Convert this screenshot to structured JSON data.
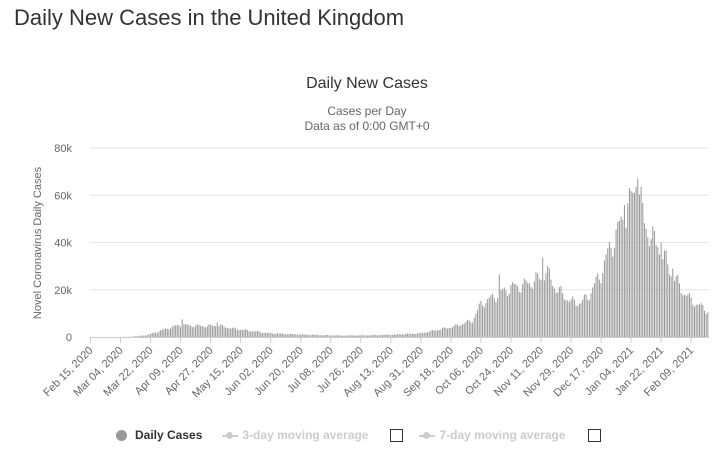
{
  "page": {
    "heading": "Daily New Cases in the United Kingdom"
  },
  "legend": {
    "items": [
      {
        "label": "Daily Cases",
        "active": true
      },
      {
        "label": "3-day moving average",
        "active": false
      },
      {
        "label": "7-day moving average",
        "active": false
      }
    ]
  },
  "colors": {
    "bar": "#999999",
    "grid": "#e6e6e6",
    "text": "#333333",
    "axis_text": "#666666",
    "inactive": "#cccccc"
  },
  "chart_data": {
    "type": "bar",
    "title": "Daily New Cases",
    "subtitle_lines": [
      "Cases per Day",
      "Data as of 0:00 GMT+0"
    ],
    "ylabel": "Novel Coronavirus Daily Cases",
    "xlabel": "",
    "ylim": [
      0,
      80000
    ],
    "yticks": [
      0,
      20000,
      40000,
      60000,
      80000
    ],
    "ytick_labels": [
      "0",
      "20k",
      "40k",
      "60k",
      "80k"
    ],
    "x_start": "2020-02-15",
    "x_end": "2021-02-19",
    "xtick_labels": [
      "Feb 15, 2020",
      "Mar 04, 2020",
      "Mar 22, 2020",
      "Apr 09, 2020",
      "Apr 27, 2020",
      "May 15, 2020",
      "Jun 02, 2020",
      "Jun 20, 2020",
      "Jul 08, 2020",
      "Jul 26, 2020",
      "Aug 13, 2020",
      "Aug 31, 2020",
      "Sep 18, 2020",
      "Oct 06, 2020",
      "Oct 24, 2020",
      "Nov 11, 2020",
      "Nov 29, 2020",
      "Dec 17, 2020",
      "Jan 04, 2021",
      "Jan 22, 2021",
      "Feb 09, 2021"
    ],
    "grid": true,
    "legend_position": "bottom",
    "key_points": [
      [
        "2020-02-15",
        0
      ],
      [
        "2020-03-01",
        30
      ],
      [
        "2020-03-10",
        100
      ],
      [
        "2020-03-20",
        800
      ],
      [
        "2020-03-28",
        2700
      ],
      [
        "2020-04-05",
        4500
      ],
      [
        "2020-04-10",
        5200
      ],
      [
        "2020-04-15",
        4800
      ],
      [
        "2020-04-25",
        4600
      ],
      [
        "2020-05-01",
        5000
      ],
      [
        "2020-05-10",
        3600
      ],
      [
        "2020-05-20",
        2700
      ],
      [
        "2020-06-01",
        1600
      ],
      [
        "2020-06-15",
        1200
      ],
      [
        "2020-07-01",
        800
      ],
      [
        "2020-07-15",
        600
      ],
      [
        "2020-08-01",
        750
      ],
      [
        "2020-08-15",
        1000
      ],
      [
        "2020-08-31",
        1600
      ],
      [
        "2020-09-10",
        3000
      ],
      [
        "2020-09-20",
        4500
      ],
      [
        "2020-10-01",
        7000
      ],
      [
        "2020-10-06",
        14000
      ],
      [
        "2020-10-15",
        17500
      ],
      [
        "2020-10-24",
        21000
      ],
      [
        "2020-11-01",
        22000
      ],
      [
        "2020-11-11",
        25000
      ],
      [
        "2020-11-14",
        28000
      ],
      [
        "2020-11-20",
        20500
      ],
      [
        "2020-11-29",
        15000
      ],
      [
        "2020-12-05",
        14500
      ],
      [
        "2020-12-10",
        18000
      ],
      [
        "2020-12-17",
        27000
      ],
      [
        "2020-12-22",
        37000
      ],
      [
        "2020-12-29",
        48000
      ],
      [
        "2021-01-04",
        58000
      ],
      [
        "2021-01-08",
        64000
      ],
      [
        "2021-01-12",
        48000
      ],
      [
        "2021-01-18",
        40000
      ],
      [
        "2021-01-22",
        36000
      ],
      [
        "2021-01-29",
        26000
      ],
      [
        "2021-02-04",
        19500
      ],
      [
        "2021-02-09",
        15500
      ],
      [
        "2021-02-19",
        11000
      ]
    ],
    "highlight_points": [
      [
        "2021-01-08",
        67000
      ],
      [
        "2021-01-07",
        63500
      ],
      [
        "2020-11-12",
        33500
      ],
      [
        "2020-10-17",
        26500
      ],
      [
        "2020-12-31",
        55800
      ],
      [
        "2021-01-29",
        29000
      ],
      [
        "2020-04-10",
        7500
      ],
      [
        "2020-05-01",
        6200
      ],
      [
        "2021-01-22",
        40000
      ],
      [
        "2021-01-20",
        38000
      ]
    ]
  }
}
